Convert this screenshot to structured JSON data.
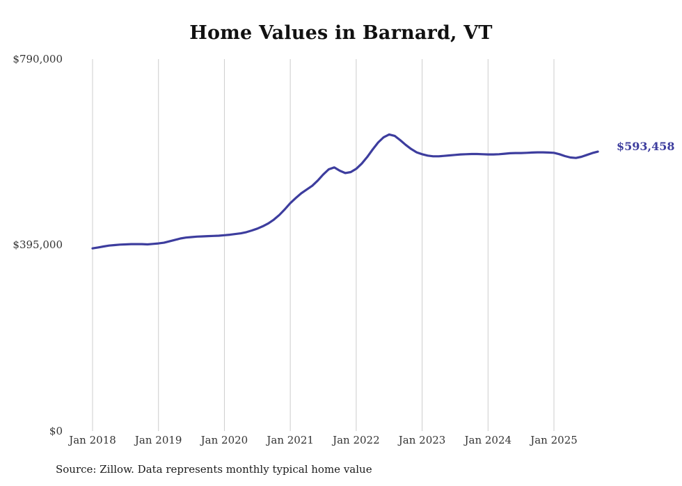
{
  "title": "Home Values in Barnard, VT",
  "source_note": "Source: Zillow. Data represents monthly typical home value",
  "accent_color": "#3d3d9e",
  "grid_color": "#cccccc",
  "chart_data": {
    "type": "line",
    "title": "Home Values in Barnard, VT",
    "xlabel": "",
    "ylabel": "",
    "x_start": "Jan 2018",
    "x_end": "Sep 2025",
    "x_tick_labels": [
      "Jan 2018",
      "Jan 2019",
      "Jan 2020",
      "Jan 2021",
      "Jan 2022",
      "Jan 2023",
      "Jan 2024",
      "Jan 2025"
    ],
    "y_tick_labels": [
      "$0",
      "$395,000",
      "$790,000"
    ],
    "y_ticks": [
      0,
      395000,
      790000
    ],
    "ylim": [
      0,
      790000
    ],
    "grid": "vertical-only",
    "legend": "none",
    "end_label": "$593,458",
    "end_value": 593458,
    "series": [
      {
        "name": "Monthly typical home value",
        "values": [
          388000,
          390000,
          392000,
          394000,
          395000,
          396000,
          396500,
          397000,
          397000,
          397000,
          396500,
          397500,
          398500,
          400000,
          403000,
          406000,
          409000,
          411000,
          412000,
          413000,
          413500,
          414000,
          414500,
          415000,
          416000,
          417000,
          418500,
          420000,
          422500,
          426000,
          430000,
          435000,
          441000,
          449000,
          459000,
          471000,
          484000,
          495000,
          505000,
          513000,
          521000,
          532000,
          545000,
          556000,
          560000,
          553000,
          548000,
          550000,
          557000,
          568000,
          582000,
          598000,
          613000,
          624000,
          630000,
          627000,
          618000,
          608000,
          599000,
          592000,
          588000,
          585000,
          583500,
          583500,
          584500,
          585500,
          586500,
          587500,
          588000,
          588500,
          588500,
          588000,
          587500,
          587500,
          588000,
          589000,
          590000,
          590500,
          590500,
          591000,
          591500,
          592000,
          592000,
          591500,
          591000,
          588000,
          584000,
          581000,
          580000,
          582500,
          586500,
          590500,
          593458
        ]
      }
    ]
  }
}
